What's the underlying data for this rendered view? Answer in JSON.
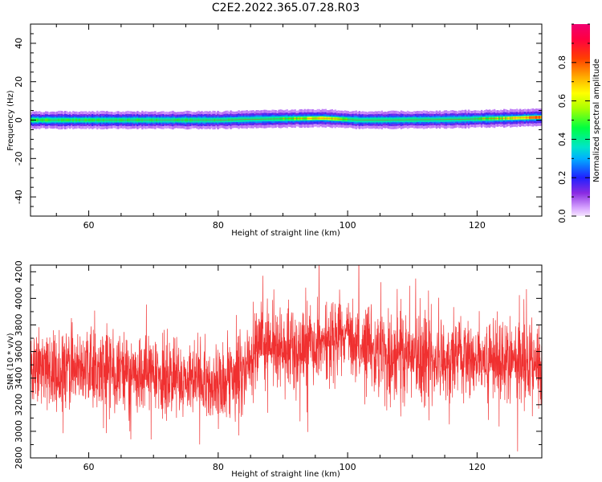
{
  "title": "C2E2.2022.365.07.28.R03",
  "chart_data": [
    {
      "type": "heatmap",
      "xlabel": "Height of straight line (km)",
      "ylabel": "Frequency (Hz)",
      "xlim": [
        51,
        130
      ],
      "ylim": [
        -50,
        50
      ],
      "x_ticks": [
        60,
        80,
        100,
        120
      ],
      "y_ticks": [
        -40,
        -20,
        0,
        20,
        40
      ],
      "colorbar": {
        "label": "Normalized spectral amplitude",
        "range": [
          0,
          1
        ],
        "ticks": [
          0.0,
          0.2,
          0.4,
          0.6,
          0.8
        ]
      },
      "band": {
        "center_hz": [
          [
            51,
            0.0
          ],
          [
            80,
            0.0
          ],
          [
            86,
            0.5
          ],
          [
            96,
            1.0
          ],
          [
            102,
            0.0
          ],
          [
            115,
            0.3
          ],
          [
            125,
            1.0
          ],
          [
            130,
            1.5
          ]
        ],
        "core_halfwidth_hz": 0.8,
        "mid_halfwidth_hz": 2.0,
        "outer_halfwidth_hz": 3.0,
        "halo_halfwidth_hz": 4.5,
        "core_peak_amplitude": [
          [
            51,
            0.55
          ],
          [
            80,
            0.5
          ],
          [
            86,
            0.45
          ],
          [
            96,
            0.75
          ],
          [
            102,
            0.45
          ],
          [
            115,
            0.45
          ],
          [
            125,
            0.7
          ],
          [
            130,
            0.9
          ]
        ]
      },
      "grid": false,
      "legend": "none"
    },
    {
      "type": "line",
      "xlabel": "Height of straight line (km)",
      "ylabel": "SNR (10 * v/v)",
      "xlim": [
        51,
        130
      ],
      "ylim": [
        2800,
        4250
      ],
      "x_ticks": [
        60,
        80,
        100,
        120
      ],
      "y_ticks": [
        2800,
        3000,
        3200,
        3400,
        3600,
        3800,
        4000,
        4200
      ],
      "series": [
        {
          "color": "#f03030",
          "mean_profile": [
            [
              51,
              3450
            ],
            [
              60,
              3480
            ],
            [
              70,
              3420
            ],
            [
              80,
              3380
            ],
            [
              84,
              3430
            ],
            [
              86,
              3650
            ],
            [
              92,
              3600
            ],
            [
              100,
              3720
            ],
            [
              104,
              3600
            ],
            [
              112,
              3540
            ],
            [
              120,
              3540
            ],
            [
              130,
              3500
            ]
          ],
          "noise_std": 150,
          "samples": 2600
        }
      ],
      "grid": false,
      "legend": "none"
    }
  ]
}
